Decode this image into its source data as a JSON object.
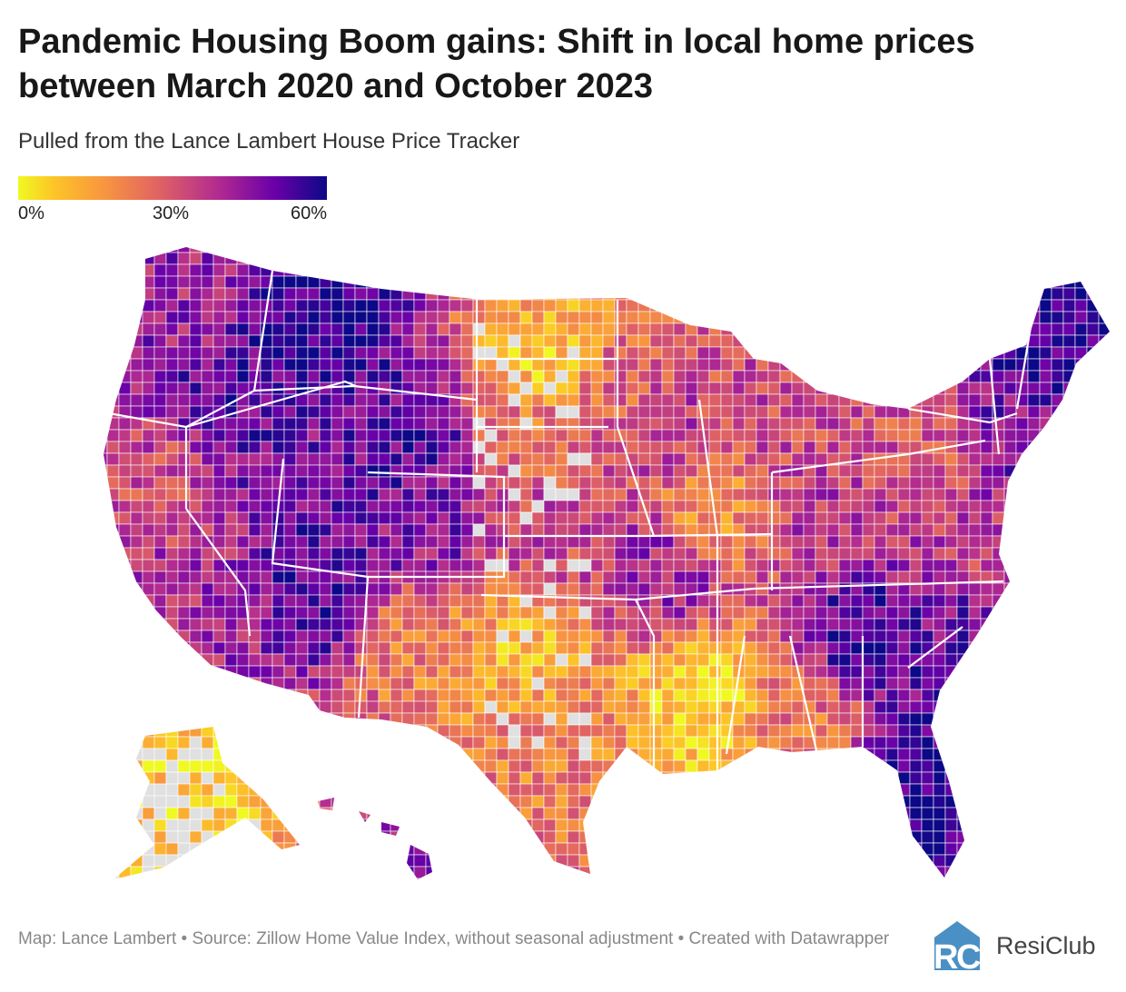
{
  "title": "Pandemic Housing Boom gains: Shift in local home prices between March 2020 and October 2023",
  "subtitle": "Pulled from the Lance Lambert House Price Tracker",
  "legend": {
    "labels": [
      "0%",
      "30%",
      "60%"
    ],
    "colors": [
      "#f0f921",
      "#fdc328",
      "#f89540",
      "#e16462",
      "#b12a90",
      "#6a00a8",
      "#0d0887"
    ],
    "no_data_color": "#e0e0e0"
  },
  "footer": "Map: Lance Lambert • Source: Zillow Home Value Index, without seasonal adjustment • Created with Datawrapper",
  "logo": {
    "text": "ResiClub",
    "mark": "RC",
    "color": "#4a90c4"
  }
}
